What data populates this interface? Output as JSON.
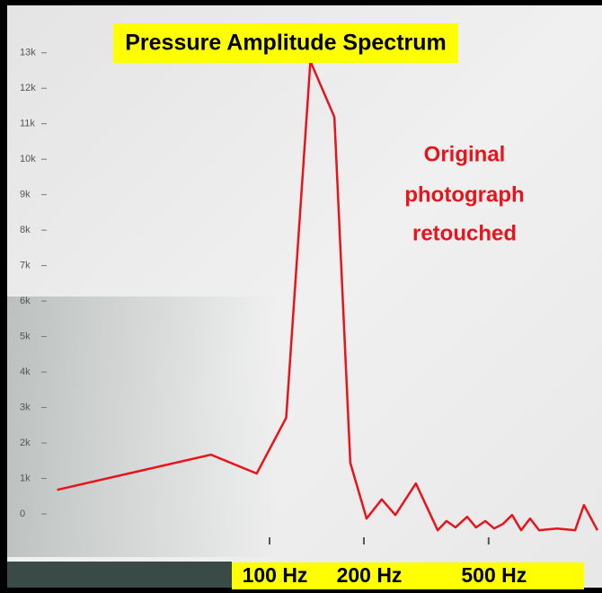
{
  "chart_data": {
    "type": "line",
    "title": "Pressure Amplitude Spectrum",
    "annotation": [
      "Original",
      "photograph",
      "retouched"
    ],
    "x": [
      21,
      65,
      91,
      113,
      135,
      161,
      181,
      204,
      228,
      252,
      293,
      344,
      367,
      392,
      427,
      456,
      488,
      521,
      556,
      594,
      635,
      678,
      725,
      827,
      944,
      1007,
      1112
    ],
    "series": [
      {
        "color": "#e8141c",
        "values": [
          680,
          1670,
          1140,
          2710,
          12760,
          11190,
          1440,
          -130,
          410,
          -30,
          860,
          -460,
          -200,
          -380,
          -80,
          -380,
          -200,
          -410,
          -280,
          -30,
          -460,
          -130,
          -460,
          -410,
          -460,
          250,
          -460
        ]
      }
    ],
    "xlim": [
      15,
      1150
    ],
    "xscale": "log",
    "xticks": [
      {
        "value": 100,
        "label": "100 Hz"
      },
      {
        "value": 200,
        "label": "200 Hz"
      },
      {
        "value": 500,
        "label": "500 Hz"
      }
    ],
    "ylim": [
      -500,
      13500
    ],
    "yticks": [
      {
        "value": 0,
        "label": "0"
      },
      {
        "value": 1000,
        "label": "1k"
      },
      {
        "value": 2000,
        "label": "2k"
      },
      {
        "value": 3000,
        "label": "3k"
      },
      {
        "value": 4000,
        "label": "4k"
      },
      {
        "value": 5000,
        "label": "5k"
      },
      {
        "value": 6000,
        "label": "6k"
      },
      {
        "value": 7000,
        "label": "7k"
      },
      {
        "value": 8000,
        "label": "8k"
      },
      {
        "value": 9000,
        "label": "9k"
      },
      {
        "value": 10000,
        "label": "10k"
      },
      {
        "value": 11000,
        "label": "11k"
      },
      {
        "value": 12000,
        "label": "12k"
      },
      {
        "value": 13000,
        "label": "13k"
      }
    ]
  }
}
